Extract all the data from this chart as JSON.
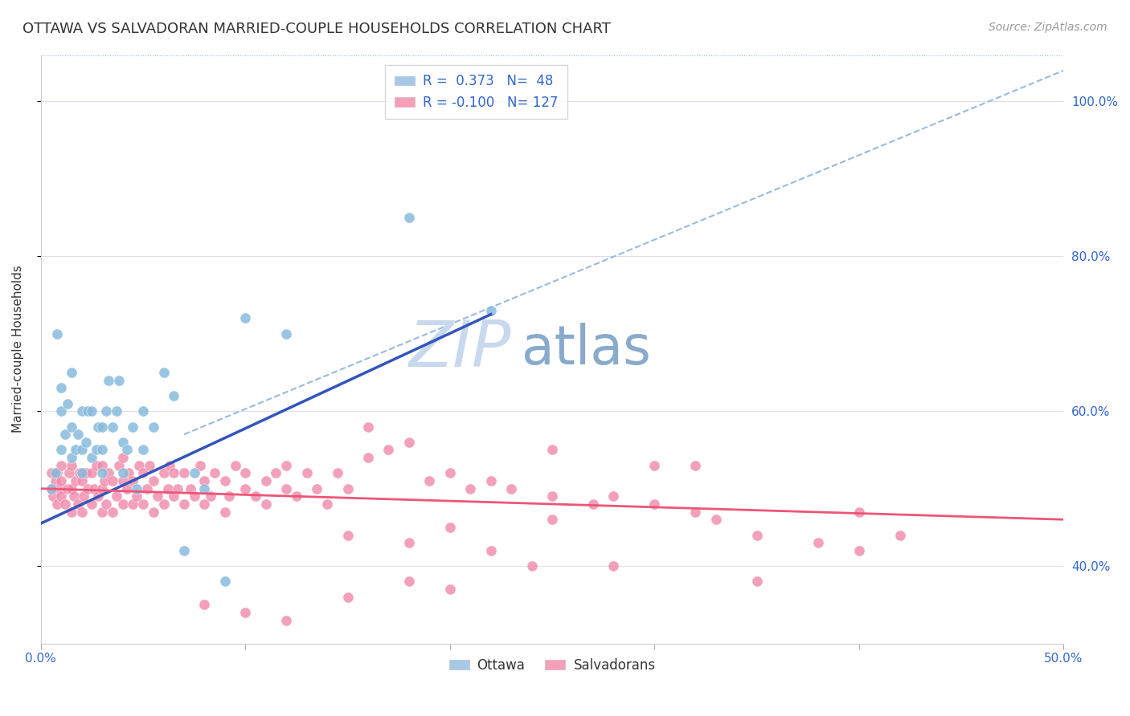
{
  "title": "OTTAWA VS SALVADORAN MARRIED-COUPLE HOUSEHOLDS CORRELATION CHART",
  "source": "Source: ZipAtlas.com",
  "ylabel": "Married-couple Households",
  "legend_entries": [
    {
      "label": "Ottawa",
      "R": "0.373",
      "N": "48",
      "color": "#a8c8e8"
    },
    {
      "label": "Salvadorans",
      "R": "-0.100",
      "N": "127",
      "color": "#f4a0b8"
    }
  ],
  "ottawa_color": "#88bbdd",
  "salvadoran_color": "#f088aa",
  "ottawa_line_color": "#3355bb",
  "salvadoran_line_color": "#ee5577",
  "dashed_line_color": "#99bbdd",
  "background_color": "#ffffff",
  "grid_color": "#ddddee",
  "watermark_zip": "ZIP",
  "watermark_atlas": "atlas",
  "watermark_color_zip": "#c8d8ee",
  "watermark_color_atlas": "#88aacc",
  "title_color": "#333333",
  "axis_label_color": "#3366cc",
  "ottawa_scatter_x": [
    0.005,
    0.007,
    0.008,
    0.01,
    0.01,
    0.01,
    0.012,
    0.013,
    0.015,
    0.015,
    0.015,
    0.017,
    0.018,
    0.02,
    0.02,
    0.02,
    0.022,
    0.023,
    0.025,
    0.025,
    0.027,
    0.028,
    0.03,
    0.03,
    0.03,
    0.032,
    0.033,
    0.035,
    0.037,
    0.038,
    0.04,
    0.04,
    0.042,
    0.045,
    0.047,
    0.05,
    0.05,
    0.055,
    0.06,
    0.065,
    0.07,
    0.075,
    0.08,
    0.09,
    0.1,
    0.12,
    0.18,
    0.22
  ],
  "ottawa_scatter_y": [
    0.5,
    0.52,
    0.7,
    0.55,
    0.6,
    0.63,
    0.57,
    0.61,
    0.54,
    0.58,
    0.65,
    0.55,
    0.57,
    0.52,
    0.55,
    0.6,
    0.56,
    0.6,
    0.54,
    0.6,
    0.55,
    0.58,
    0.52,
    0.55,
    0.58,
    0.6,
    0.64,
    0.58,
    0.6,
    0.64,
    0.52,
    0.56,
    0.55,
    0.58,
    0.5,
    0.55,
    0.6,
    0.58,
    0.65,
    0.62,
    0.42,
    0.52,
    0.5,
    0.38,
    0.72,
    0.7,
    0.85,
    0.73
  ],
  "salvadoran_scatter_x": [
    0.005,
    0.005,
    0.006,
    0.007,
    0.008,
    0.008,
    0.009,
    0.01,
    0.01,
    0.01,
    0.012,
    0.013,
    0.014,
    0.015,
    0.015,
    0.015,
    0.016,
    0.017,
    0.018,
    0.019,
    0.02,
    0.02,
    0.021,
    0.022,
    0.023,
    0.025,
    0.025,
    0.026,
    0.027,
    0.028,
    0.03,
    0.03,
    0.03,
    0.031,
    0.032,
    0.033,
    0.035,
    0.035,
    0.037,
    0.038,
    0.04,
    0.04,
    0.04,
    0.042,
    0.043,
    0.045,
    0.045,
    0.047,
    0.048,
    0.05,
    0.05,
    0.052,
    0.053,
    0.055,
    0.055,
    0.057,
    0.06,
    0.06,
    0.062,
    0.063,
    0.065,
    0.065,
    0.067,
    0.07,
    0.07,
    0.073,
    0.075,
    0.078,
    0.08,
    0.08,
    0.083,
    0.085,
    0.09,
    0.09,
    0.092,
    0.095,
    0.1,
    0.1,
    0.105,
    0.11,
    0.11,
    0.115,
    0.12,
    0.12,
    0.125,
    0.13,
    0.135,
    0.14,
    0.145,
    0.15,
    0.16,
    0.16,
    0.17,
    0.18,
    0.19,
    0.2,
    0.21,
    0.22,
    0.23,
    0.25,
    0.27,
    0.28,
    0.3,
    0.32,
    0.33,
    0.35,
    0.38,
    0.4,
    0.42,
    0.25,
    0.3,
    0.35,
    0.4,
    0.2,
    0.25,
    0.15,
    0.18,
    0.22,
    0.28,
    0.32,
    0.08,
    0.1,
    0.12,
    0.15,
    0.18,
    0.2,
    0.24
  ],
  "salvadoran_scatter_y": [
    0.5,
    0.52,
    0.49,
    0.51,
    0.48,
    0.52,
    0.5,
    0.49,
    0.51,
    0.53,
    0.48,
    0.5,
    0.52,
    0.47,
    0.5,
    0.53,
    0.49,
    0.51,
    0.48,
    0.52,
    0.47,
    0.51,
    0.49,
    0.52,
    0.5,
    0.48,
    0.52,
    0.5,
    0.53,
    0.49,
    0.47,
    0.5,
    0.53,
    0.51,
    0.48,
    0.52,
    0.47,
    0.51,
    0.49,
    0.53,
    0.48,
    0.51,
    0.54,
    0.5,
    0.52,
    0.48,
    0.51,
    0.49,
    0.53,
    0.48,
    0.52,
    0.5,
    0.53,
    0.47,
    0.51,
    0.49,
    0.48,
    0.52,
    0.5,
    0.53,
    0.49,
    0.52,
    0.5,
    0.48,
    0.52,
    0.5,
    0.49,
    0.53,
    0.48,
    0.51,
    0.49,
    0.52,
    0.47,
    0.51,
    0.49,
    0.53,
    0.5,
    0.52,
    0.49,
    0.51,
    0.48,
    0.52,
    0.5,
    0.53,
    0.49,
    0.52,
    0.5,
    0.48,
    0.52,
    0.5,
    0.58,
    0.54,
    0.55,
    0.56,
    0.51,
    0.52,
    0.5,
    0.51,
    0.5,
    0.49,
    0.48,
    0.49,
    0.48,
    0.47,
    0.46,
    0.44,
    0.43,
    0.42,
    0.44,
    0.55,
    0.53,
    0.38,
    0.47,
    0.45,
    0.46,
    0.44,
    0.43,
    0.42,
    0.4,
    0.53,
    0.35,
    0.34,
    0.33,
    0.36,
    0.38,
    0.37,
    0.4
  ],
  "xlim": [
    0.0,
    0.5
  ],
  "ylim": [
    0.3,
    1.06
  ],
  "xticks": [
    0.0,
    0.1,
    0.2,
    0.3,
    0.4,
    0.5
  ],
  "xtick_labels": [
    "0.0%",
    "",
    "",
    "",
    "",
    "50.0%"
  ],
  "ytick_positions": [
    0.4,
    0.6,
    0.8,
    1.0
  ],
  "ytick_labels": [
    "40.0%",
    "60.0%",
    "80.0%",
    "100.0%"
  ],
  "ottawa_line_x": [
    0.0,
    0.22
  ],
  "ottawa_line_y": [
    0.455,
    0.725
  ],
  "salv_line_x": [
    0.0,
    0.5
  ],
  "salv_line_y": [
    0.5,
    0.46
  ],
  "dash_line_x": [
    0.07,
    0.5
  ],
  "dash_line_y": [
    0.57,
    1.04
  ]
}
